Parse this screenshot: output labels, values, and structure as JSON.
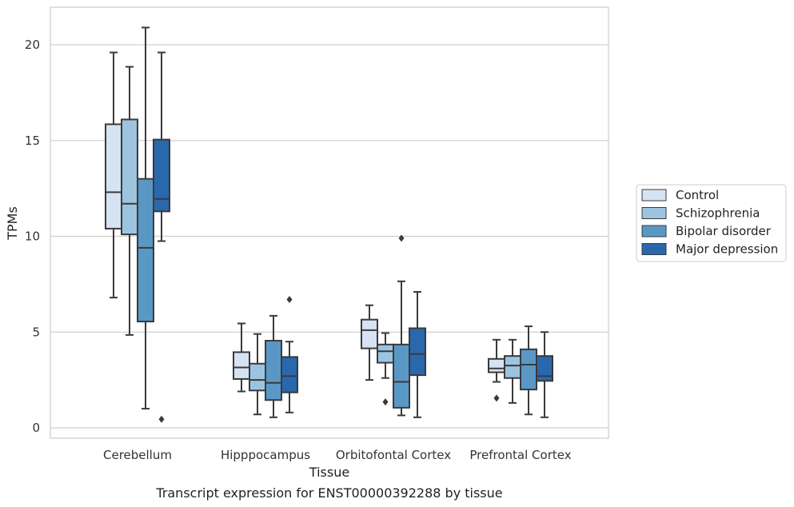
{
  "chart_data": {
    "type": "box",
    "caption": "Transcript expression for ENST00000392288 by tissue",
    "xlabel": "Tissue",
    "ylabel": "TPMs",
    "ylim": [
      -0.5,
      22
    ],
    "yticks": [
      0,
      5,
      10,
      15,
      20
    ],
    "grid": true,
    "legend_position": "right",
    "categories": [
      "Cerebellum",
      "Hipppocampus",
      "Orbitofontal Cortex",
      "Prefrontal Cortex"
    ],
    "series": [
      {
        "name": "Control",
        "color": "#d6e3f2",
        "boxes": [
          {
            "whislo": 6.8,
            "q1": 10.4,
            "med": 12.3,
            "q3": 15.85,
            "whishi": 19.6,
            "fliers": []
          },
          {
            "whislo": 1.9,
            "q1": 2.55,
            "med": 3.15,
            "q3": 3.95,
            "whishi": 5.45,
            "fliers": []
          },
          {
            "whislo": 2.5,
            "q1": 4.15,
            "med": 5.1,
            "q3": 5.65,
            "whishi": 6.4,
            "fliers": []
          },
          {
            "whislo": 2.4,
            "q1": 2.9,
            "med": 3.1,
            "q3": 3.6,
            "whishi": 4.6,
            "fliers": [
              1.55
            ]
          }
        ]
      },
      {
        "name": "Schizophrenia",
        "color": "#9dc4df",
        "boxes": [
          {
            "whislo": 4.85,
            "q1": 10.1,
            "med": 11.7,
            "q3": 16.1,
            "whishi": 18.85,
            "fliers": []
          },
          {
            "whislo": 0.7,
            "q1": 1.95,
            "med": 2.5,
            "q3": 3.35,
            "whishi": 4.9,
            "fliers": []
          },
          {
            "whislo": 2.6,
            "q1": 3.4,
            "med": 4.0,
            "q3": 4.35,
            "whishi": 4.95,
            "fliers": [
              1.35
            ]
          },
          {
            "whislo": 1.3,
            "q1": 2.6,
            "med": 3.25,
            "q3": 3.75,
            "whishi": 4.6,
            "fliers": []
          }
        ]
      },
      {
        "name": "Bipolar disorder",
        "color": "#5998c5",
        "boxes": [
          {
            "whislo": 1.0,
            "q1": 5.55,
            "med": 9.4,
            "q3": 13.0,
            "whishi": 20.9,
            "fliers": []
          },
          {
            "whislo": 0.55,
            "q1": 1.45,
            "med": 2.35,
            "q3": 4.55,
            "whishi": 5.85,
            "fliers": []
          },
          {
            "whislo": 0.65,
            "q1": 1.05,
            "med": 2.4,
            "q3": 4.35,
            "whishi": 7.65,
            "fliers": [
              9.9
            ]
          },
          {
            "whislo": 0.7,
            "q1": 2.0,
            "med": 3.3,
            "q3": 4.1,
            "whishi": 5.3,
            "fliers": []
          }
        ]
      },
      {
        "name": "Major depression",
        "color": "#2a68ad",
        "boxes": [
          {
            "whislo": 9.75,
            "q1": 11.3,
            "med": 11.95,
            "q3": 15.05,
            "whishi": 19.6,
            "fliers": [
              0.45
            ]
          },
          {
            "whislo": 0.8,
            "q1": 1.85,
            "med": 2.7,
            "q3": 3.7,
            "whishi": 4.5,
            "fliers": [
              6.7
            ]
          },
          {
            "whislo": 0.55,
            "q1": 2.75,
            "med": 3.85,
            "q3": 5.2,
            "whishi": 7.1,
            "fliers": []
          },
          {
            "whislo": 0.55,
            "q1": 2.45,
            "med": 2.7,
            "q3": 3.75,
            "whishi": 5.0,
            "fliers": []
          }
        ]
      }
    ]
  }
}
